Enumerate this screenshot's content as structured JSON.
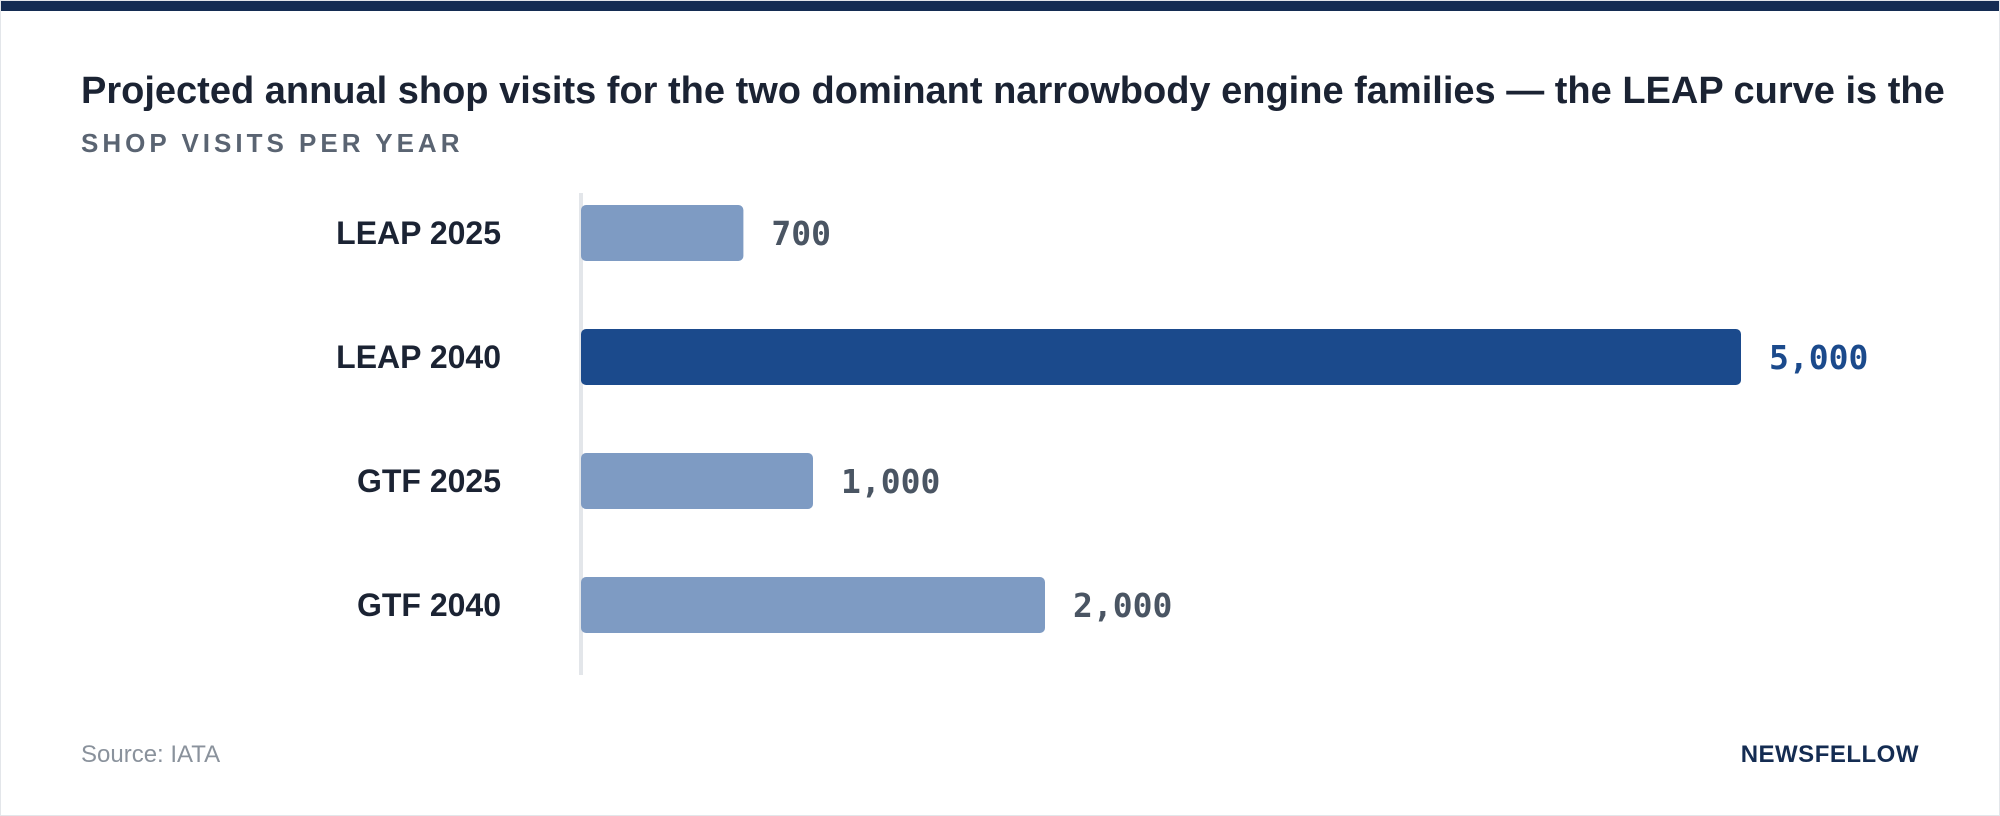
{
  "title": "Projected annual shop visits for the two dominant narrowbody engine families — the LEAP curve is the",
  "subtitle": "SHOP VISITS PER YEAR",
  "footer": {
    "source": "Source: IATA",
    "brand": "NEWSFELLOW"
  },
  "colors": {
    "top_rule": "#142c52",
    "bar_default": "#7e9bc3",
    "bar_highlight": "#1b4a8c",
    "value_default": "#4a5563",
    "value_highlight": "#1b4a8c",
    "category_label": "#1b2333",
    "axis_line": "#e3e6ea"
  },
  "chart_data": {
    "type": "bar",
    "orientation": "horizontal",
    "categories": [
      "LEAP 2025",
      "LEAP 2040",
      "GTF 2025",
      "GTF 2040"
    ],
    "values": [
      700,
      5000,
      1000,
      2000
    ],
    "value_labels": [
      "700",
      "5,000",
      "1,000",
      "2,000"
    ],
    "highlight": "LEAP 2040",
    "title": "Projected annual shop visits for the two dominant narrowbody engine families — the LEAP curve is the",
    "xlabel": "",
    "ylabel": "SHOP VISITS PER YEAR",
    "xlim": [
      0,
      5000
    ],
    "grid": false,
    "legend": "none"
  }
}
